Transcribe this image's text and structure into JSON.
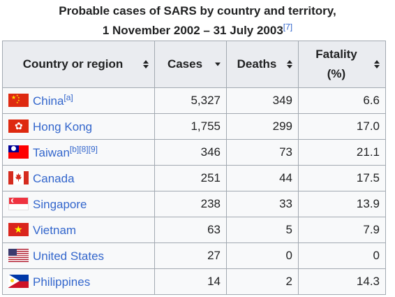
{
  "caption": {
    "line1": "Probable cases of SARS by country and territory,",
    "line2": "1 November 2002 – 31 July 2003",
    "ref": "[7]"
  },
  "headers": {
    "country": "Country or region",
    "cases": "Cases",
    "deaths": "Deaths",
    "fatality_line1": "Fatality",
    "fatality_line2": "(%)"
  },
  "rows": [
    {
      "name": "China",
      "note": "[a]",
      "cases": "5,327",
      "deaths": "349",
      "fatality": "6.6",
      "flag": "china-flag-icon"
    },
    {
      "name": "Hong Kong",
      "note": "",
      "cases": "1,755",
      "deaths": "299",
      "fatality": "17.0",
      "flag": "hong-kong-flag-icon"
    },
    {
      "name": "Taiwan",
      "note": "[b][8][9]",
      "cases": "346",
      "deaths": "73",
      "fatality": "21.1",
      "flag": "taiwan-flag-icon"
    },
    {
      "name": "Canada",
      "note": "",
      "cases": "251",
      "deaths": "44",
      "fatality": "17.5",
      "flag": "canada-flag-icon"
    },
    {
      "name": "Singapore",
      "note": "",
      "cases": "238",
      "deaths": "33",
      "fatality": "13.9",
      "flag": "singapore-flag-icon"
    },
    {
      "name": "Vietnam",
      "note": "",
      "cases": "63",
      "deaths": "5",
      "fatality": "7.9",
      "flag": "vietnam-flag-icon"
    },
    {
      "name": "United States",
      "note": "",
      "cases": "27",
      "deaths": "0",
      "fatality": "0",
      "flag": "united-states-flag-icon"
    },
    {
      "name": "Philippines",
      "note": "",
      "cases": "14",
      "deaths": "2",
      "fatality": "14.3",
      "flag": "philippines-flag-icon"
    }
  ],
  "colors": {
    "link": "#3366cc",
    "header_bg": "#eaecf0",
    "cell_bg": "#f8f9fa",
    "border": "#a2a9b1"
  }
}
